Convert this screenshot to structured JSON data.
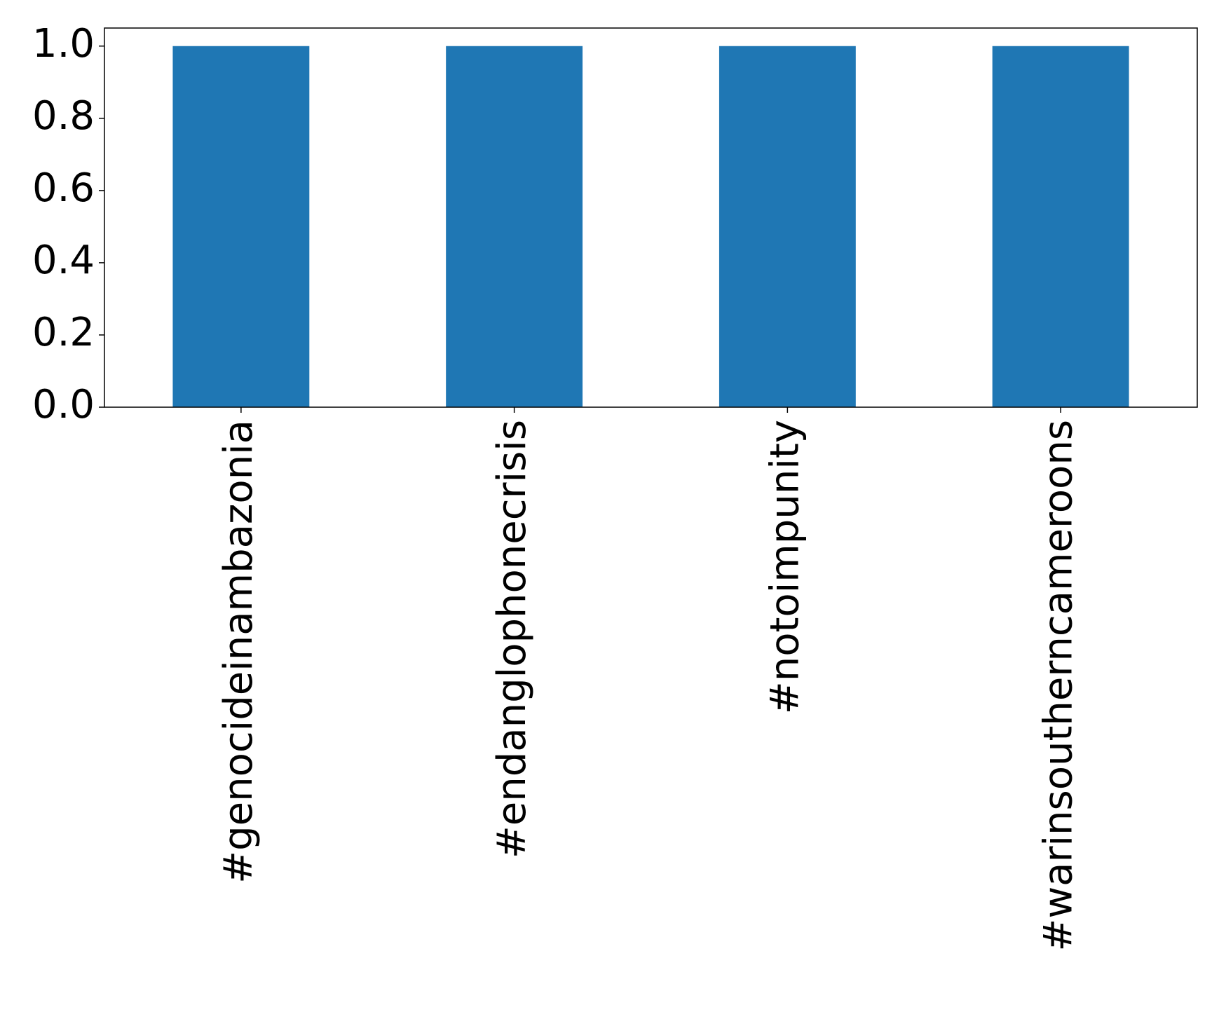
{
  "chart_data": {
    "type": "bar",
    "categories": [
      "#genocideinambazonia",
      "#endanglophonecrisis",
      "#notoimpunity",
      "#warinsoutherncameroons"
    ],
    "values": [
      1,
      1,
      1,
      1
    ],
    "color": "#1f77b4",
    "ylim": [
      0,
      1.05
    ],
    "yticks": [
      {
        "value": 0,
        "label": "0.0"
      },
      {
        "value": 0.2,
        "label": "0.2"
      },
      {
        "value": 0.4,
        "label": "0.4"
      },
      {
        "value": 0.6,
        "label": "0.6"
      },
      {
        "value": 0.8,
        "label": "0.8"
      },
      {
        "value": 1,
        "label": "1.0"
      }
    ],
    "grid": false
  }
}
